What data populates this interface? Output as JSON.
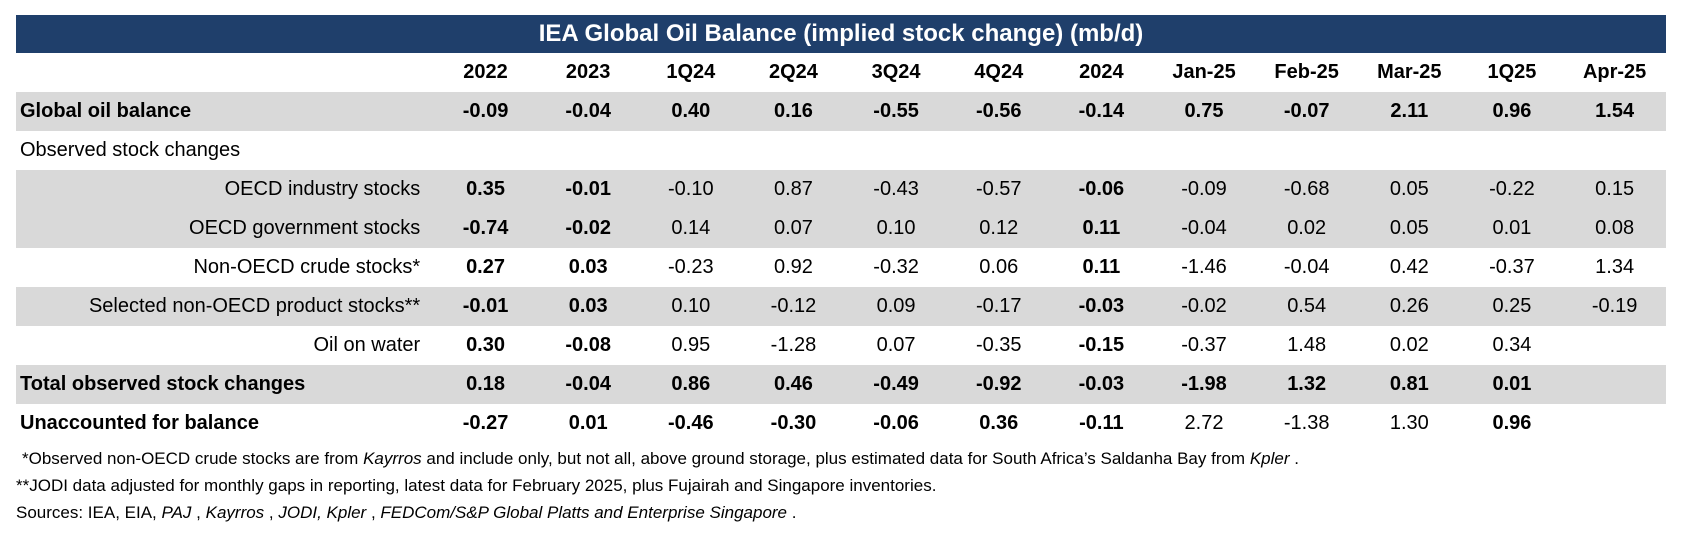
{
  "title": "IEA Global Oil Balance (implied stock change) (mb/d)",
  "columns": [
    "2022",
    "2023",
    "1Q24",
    "2Q24",
    "3Q24",
    "4Q24",
    "2024",
    "Jan-25",
    "Feb-25",
    "Mar-25",
    "1Q25",
    "Apr-25"
  ],
  "rows": [
    {
      "label": "Global oil balance",
      "values": [
        "-0.09",
        "-0.04",
        "0.40",
        "0.16",
        "-0.55",
        "-0.56",
        "-0.14",
        "0.75",
        "-0.07",
        "2.11",
        "0.96",
        "1.54"
      ]
    },
    {
      "label": "Observed stock changes",
      "values": [
        "",
        "",
        "",
        "",
        "",
        "",
        "",
        "",
        "",
        "",
        "",
        ""
      ]
    },
    {
      "label": "OECD industry stocks",
      "values": [
        "0.35",
        "-0.01",
        "-0.10",
        "0.87",
        "-0.43",
        "-0.57",
        "-0.06",
        "-0.09",
        "-0.68",
        "0.05",
        "-0.22",
        "0.15"
      ]
    },
    {
      "label": "OECD government stocks",
      "values": [
        "-0.74",
        "-0.02",
        "0.14",
        "0.07",
        "0.10",
        "0.12",
        "0.11",
        "-0.04",
        "0.02",
        "0.05",
        "0.01",
        "0.08"
      ]
    },
    {
      "label": "Non-OECD crude stocks*",
      "values": [
        "0.27",
        "0.03",
        "-0.23",
        "0.92",
        "-0.32",
        "0.06",
        "0.11",
        "-1.46",
        "-0.04",
        "0.42",
        "-0.37",
        "1.34"
      ]
    },
    {
      "label": "Selected non-OECD product stocks**",
      "values": [
        "-0.01",
        "0.03",
        "0.10",
        "-0.12",
        "0.09",
        "-0.17",
        "-0.03",
        "-0.02",
        "0.54",
        "0.26",
        "0.25",
        "-0.19"
      ]
    },
    {
      "label": "Oil on water",
      "values": [
        "0.30",
        "-0.08",
        "0.95",
        "-1.28",
        "0.07",
        "-0.35",
        "-0.15",
        "-0.37",
        "1.48",
        "0.02",
        "0.34",
        ""
      ]
    },
    {
      "label": "Total observed stock changes",
      "values": [
        "0.18",
        "-0.04",
        "0.86",
        "0.46",
        "-0.49",
        "-0.92",
        "-0.03",
        "-1.98",
        "1.32",
        "0.81",
        "0.01",
        ""
      ]
    },
    {
      "label": "Unaccounted for balance",
      "values": [
        "-0.27",
        "0.01",
        "-0.46",
        "-0.30",
        "-0.06",
        "0.36",
        "-0.11",
        "2.72",
        "-1.38",
        "1.30",
        "0.96",
        ""
      ]
    }
  ],
  "notes": {
    "n1": [
      "*Observed non-OECD crude stocks are from ",
      "Kayrros",
      " and include only, but not all, above ground storage, plus estimated data for South Africa’s Saldanha Bay from ",
      "Kpler",
      " ."
    ],
    "n2": "**JODI data adjusted for monthly gaps in reporting, latest data for February 2025, plus Fujairah and Singapore inventories.",
    "n3": [
      "Sources: IEA, EIA, ",
      "PAJ",
      " , ",
      "Kayrros",
      " , ",
      "JODI,  Kpler",
      " , ",
      "FEDCom/S&P Global Platts and  Enterprise Singapore",
      " ."
    ]
  }
}
